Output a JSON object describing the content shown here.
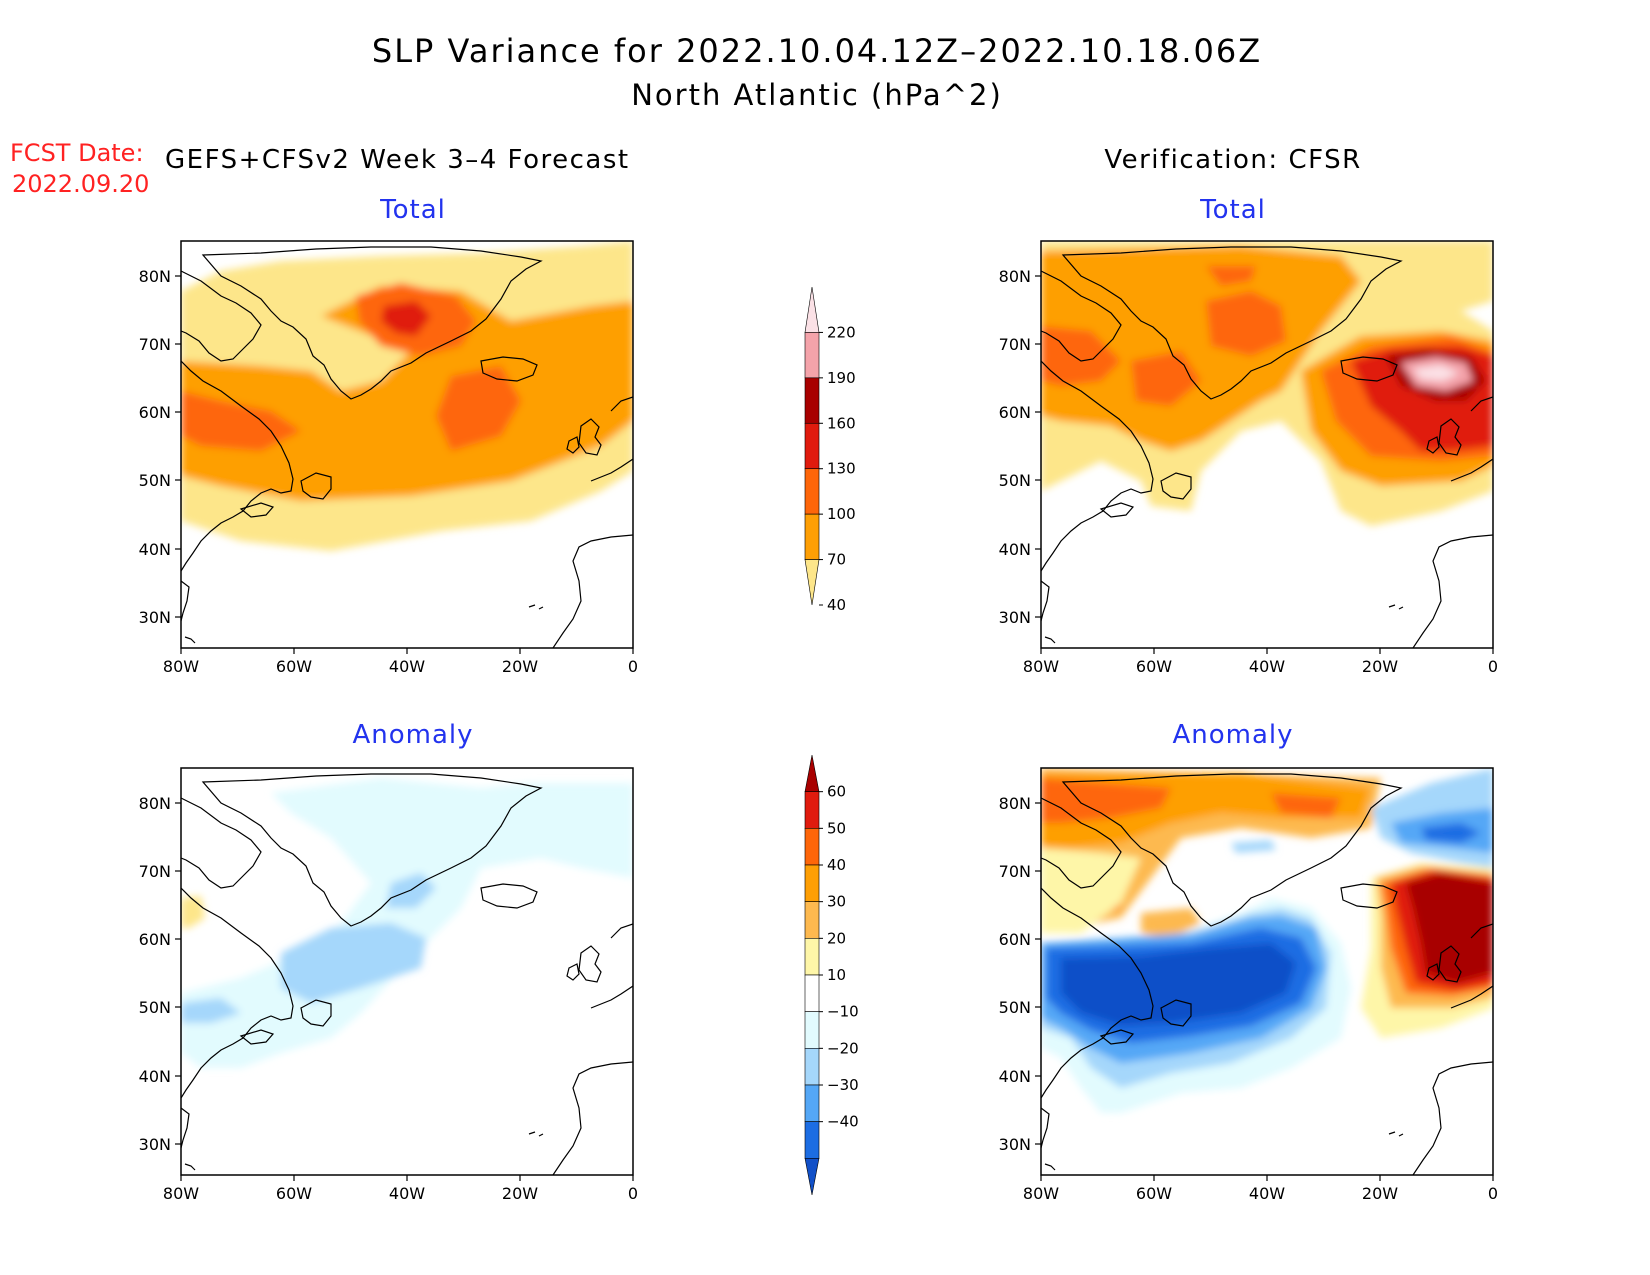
{
  "title_line1": "SLP Variance for 2022.10.04.12Z–2022.10.18.06Z",
  "title_line2": "North Atlantic (hPa^2)",
  "fcst_date_label": "FCST Date:",
  "fcst_date_value": "2022.09.20",
  "left_header": "GEFS+CFSv2 Week 3–4 Forecast",
  "right_header": "Verification: CFSR",
  "panels": {
    "fcst_total_title": "Total",
    "verif_total_title": "Total",
    "fcst_anom_title": "Anomaly",
    "verif_anom_title": "Anomaly"
  },
  "lat_ticks": [
    "80N",
    "70N",
    "60N",
    "50N",
    "40N",
    "30N"
  ],
  "lon_ticks": [
    "80W",
    "60W",
    "40W",
    "20W",
    "0"
  ],
  "total_colorbar": {
    "labels": [
      "220",
      "190",
      "160",
      "130",
      "100",
      "70",
      "40"
    ],
    "colors": [
      "#fbe1e6",
      "#f4a3aa",
      "#a80000",
      "#e01b0e",
      "#fe6609",
      "#fe9f05",
      "#fde68a"
    ]
  },
  "anomaly_colorbar": {
    "labels": [
      "60",
      "50",
      "40",
      "30",
      "20",
      "10",
      "−10",
      "−20",
      "−30",
      "−40"
    ],
    "colors": [
      "#a80000",
      "#e01b0e",
      "#fe6609",
      "#fe9f05",
      "#fdb94f",
      "#fef6a8",
      "#ffffff",
      "#e2fbfe",
      "#a5d7fb",
      "#54a7f6",
      "#1c6de3",
      "#1150c8"
    ]
  },
  "colors": {
    "title": "#000000",
    "panel_title": "#2233ee",
    "fcst_date": "#ff2222"
  }
}
